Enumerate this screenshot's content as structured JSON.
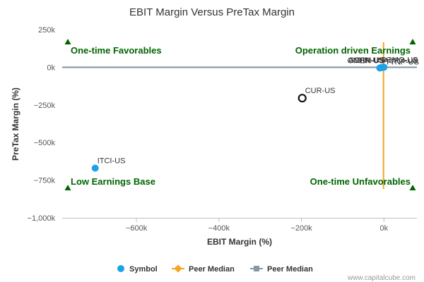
{
  "chart_data": {
    "type": "scatter",
    "title": "EBIT Margin Versus PreTax Margin",
    "xlabel": "EBIT Margin (%)",
    "ylabel": "PreTax Margin (%)",
    "xlim": [
      -780000,
      80000
    ],
    "ylim": [
      -1000000,
      250000
    ],
    "x_ticks": [
      -600000,
      -400000,
      -200000,
      0
    ],
    "x_tick_labels": [
      "−600k",
      "−400k",
      "−200k",
      "0k"
    ],
    "y_ticks": [
      250000,
      0,
      -250000,
      -500000,
      -750000,
      -1000000
    ],
    "y_tick_labels": [
      "250k",
      "0k",
      "−250k",
      "−500k",
      "−750k",
      "−1,000k"
    ],
    "points": [
      {
        "label": "ITCI-US",
        "x": -700000,
        "y": -670000,
        "style": "filled"
      },
      {
        "label": "CUR-US",
        "x": -198000,
        "y": -205000,
        "style": "hollow"
      },
      {
        "label": "OMER-US",
        "x": -10000,
        "y": -5000,
        "style": "filled"
      },
      {
        "label": "ACHN-US",
        "x": -8000,
        "y": -3000,
        "style": "filled"
      },
      {
        "label": "GERN-US",
        "x": -6000,
        "y": -2000,
        "style": "filled"
      },
      {
        "label": "SGMO-US",
        "x": -4000,
        "y": -1000,
        "style": "filled"
      },
      {
        "label": "ACRX-US",
        "x": -2000,
        "y": 0,
        "style": "filled"
      },
      {
        "label": "TTNP-US",
        "x": 0,
        "y": 500,
        "style": "filled"
      }
    ],
    "peer_median_x": -1000,
    "peer_median_y": -500,
    "quadrants": {
      "top_left": "One-time Favorables",
      "top_right": "Operation driven Earnings",
      "bottom_left": "Low Earnings Base",
      "bottom_right": "One-time Unfavorables"
    },
    "legend": [
      {
        "label": "Symbol",
        "marker": "circle",
        "color": "#1aa3e8"
      },
      {
        "label": "Peer Median",
        "marker": "diamond-line",
        "color": "#f5a623"
      },
      {
        "label": "Peer Median",
        "marker": "square-line",
        "color": "#8a96a3"
      }
    ],
    "legend_position": "bottom",
    "colors": {
      "symbol": "#1aa3e8",
      "peer_median_x": "#f5a623",
      "peer_median_y": "#8a96a3",
      "quadrant_text": "#006400",
      "triangle": "#006400"
    },
    "credit": "www.capitalcube.com"
  }
}
